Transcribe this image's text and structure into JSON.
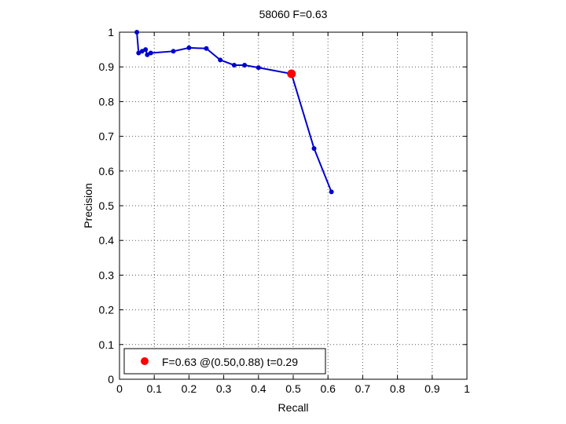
{
  "chart_data": {
    "type": "line",
    "title": "58060 F=0.63",
    "xlabel": "Recall",
    "ylabel": "Precision",
    "xlim": [
      0,
      1
    ],
    "ylim": [
      0,
      1
    ],
    "grid": true,
    "xticks": [
      "0",
      "0.1",
      "0.2",
      "0.3",
      "0.4",
      "0.5",
      "0.6",
      "0.7",
      "0.8",
      "0.9",
      "1"
    ],
    "yticks": [
      "0",
      "0.1",
      "0.2",
      "0.3",
      "0.4",
      "0.5",
      "0.6",
      "0.7",
      "0.8",
      "0.9",
      "1"
    ],
    "series": [
      {
        "color": "#0000cc",
        "x": [
          0.05,
          0.055,
          0.065,
          0.075,
          0.08,
          0.09,
          0.155,
          0.2,
          0.25,
          0.29,
          0.33,
          0.36,
          0.4,
          0.495,
          0.56,
          0.61
        ],
        "y": [
          1.0,
          0.94,
          0.945,
          0.95,
          0.935,
          0.94,
          0.945,
          0.955,
          0.953,
          0.92,
          0.905,
          0.905,
          0.898,
          0.88,
          0.665,
          0.54
        ]
      }
    ],
    "highlight": {
      "x": 0.495,
      "y": 0.88,
      "color": "#ff0000"
    },
    "legend": {
      "placement": "bottom-left",
      "label": "F=0.63 @(0.50,0.88) t=0.29"
    }
  }
}
